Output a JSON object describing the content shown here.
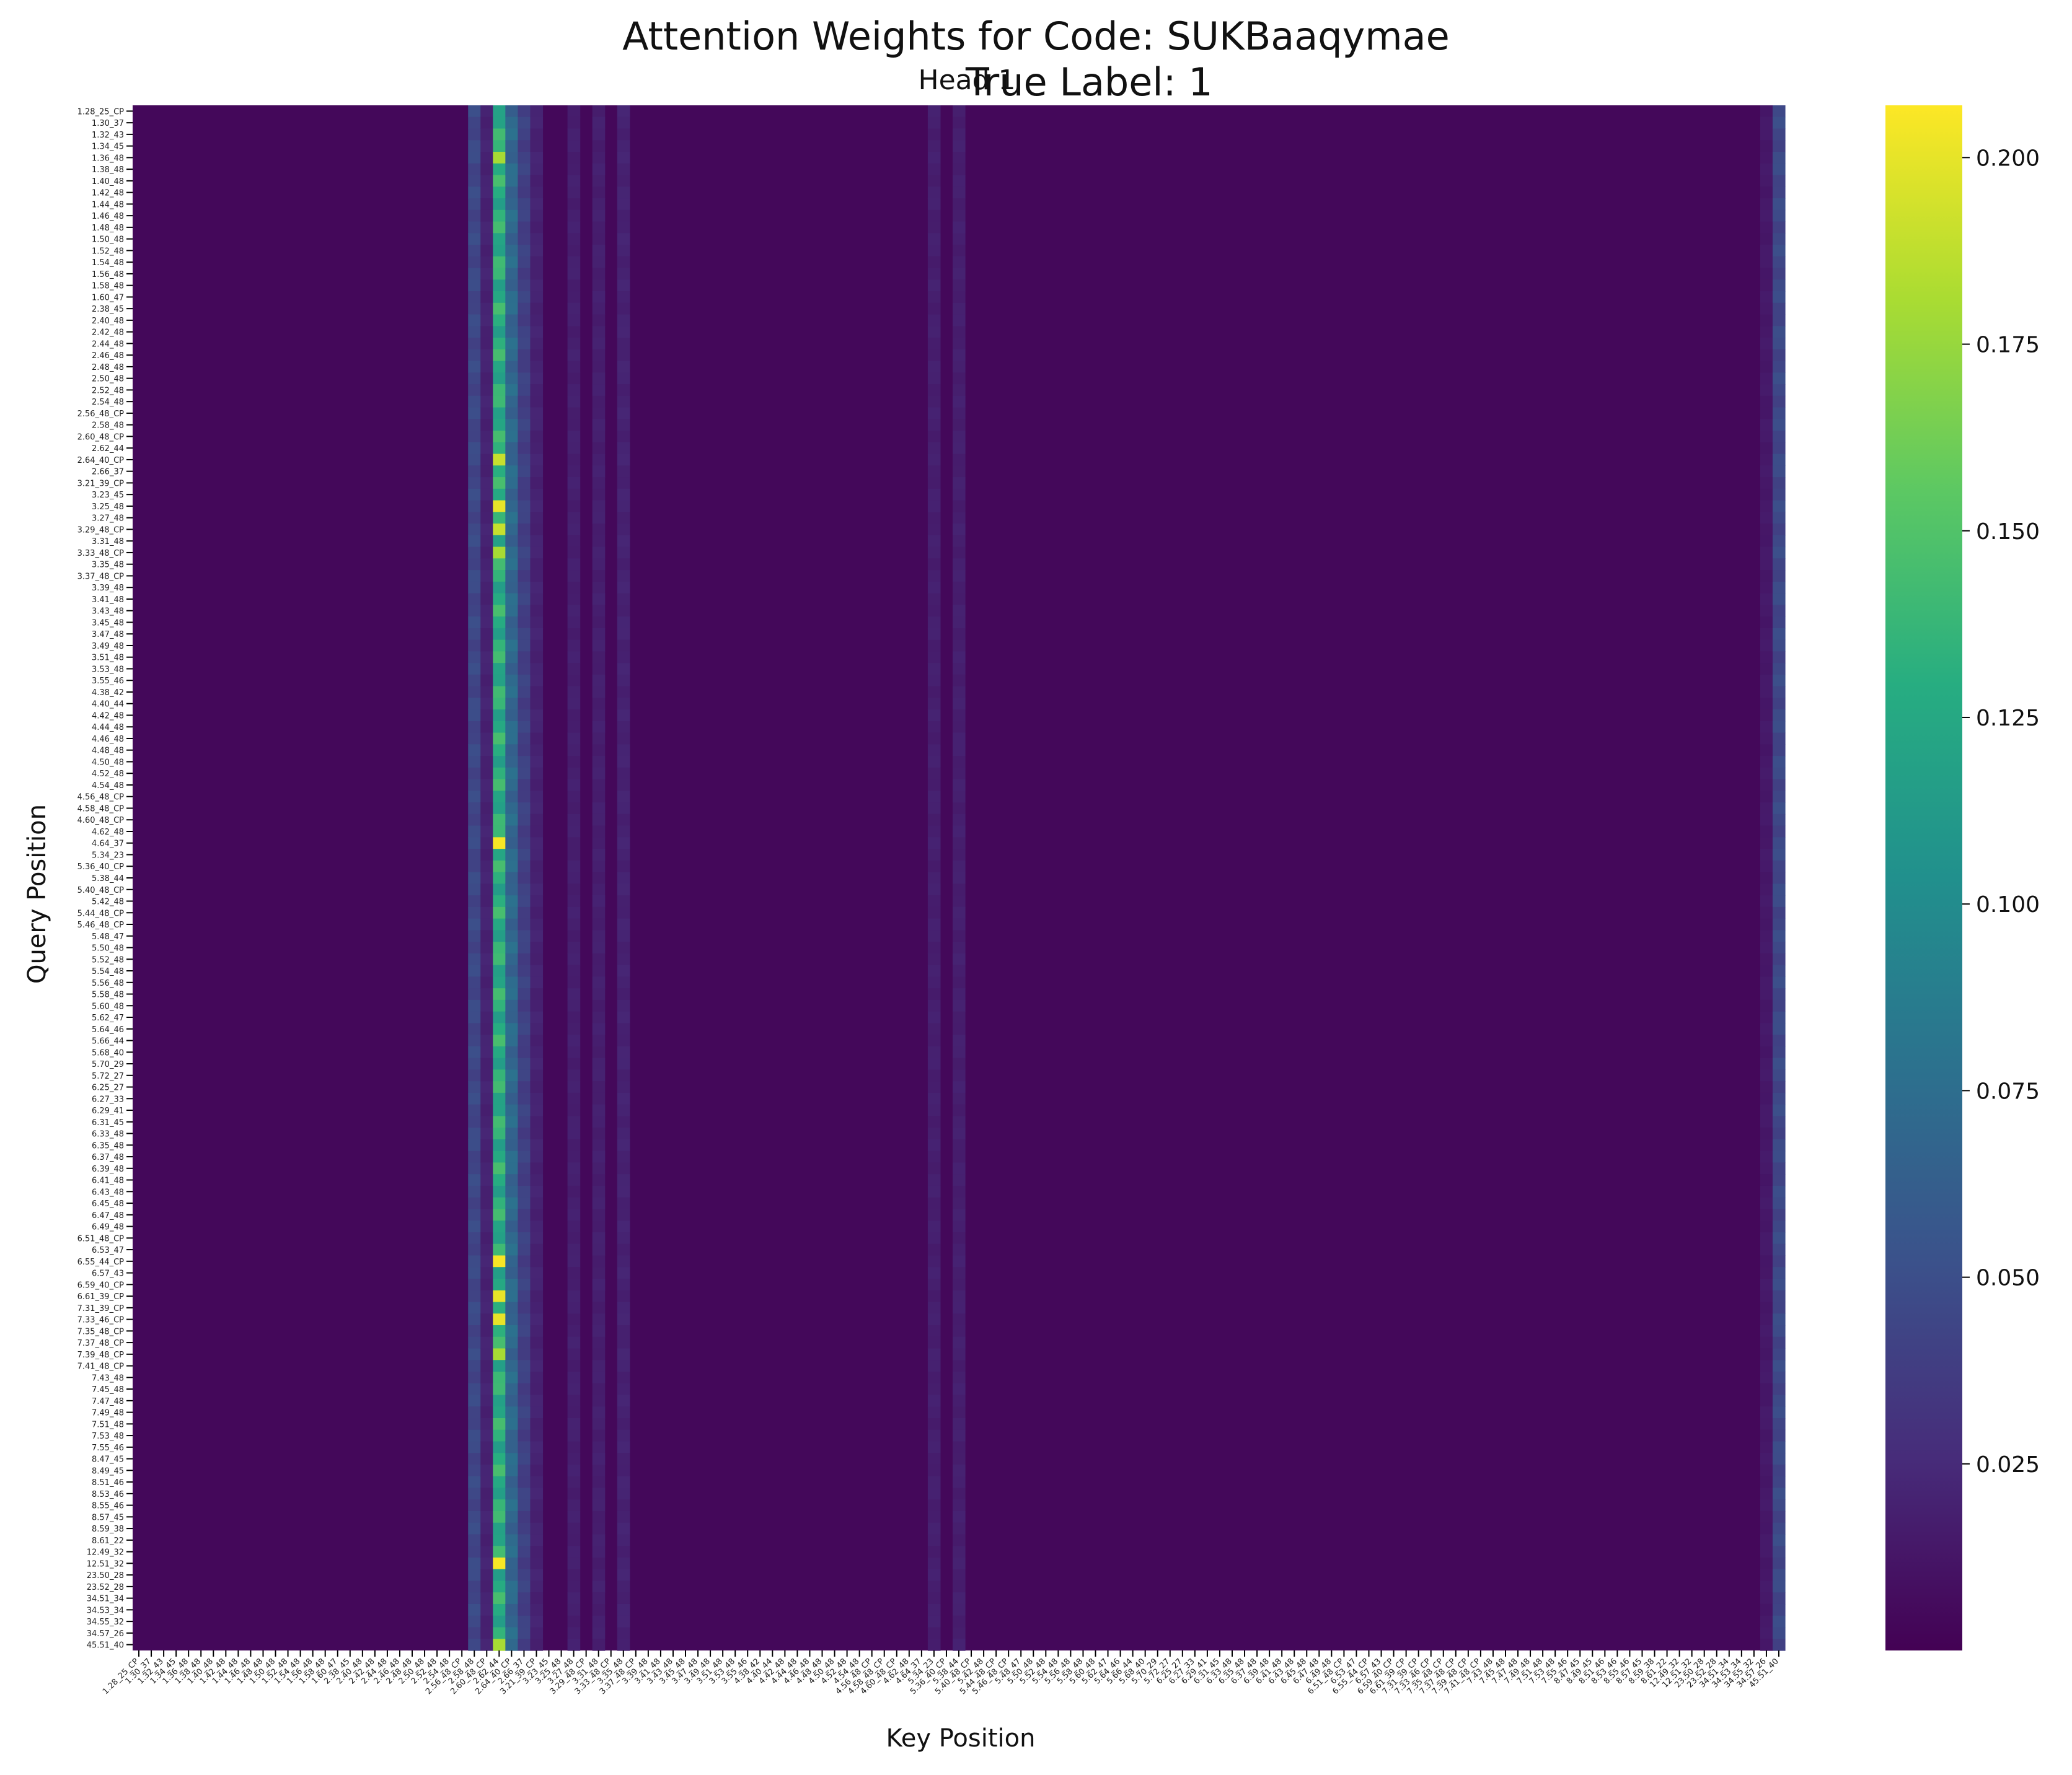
{
  "chart_data": {
    "type": "heatmap",
    "title": "Attention Weights for Code: SUKBaaqymae",
    "subtitle": "True Label: 1",
    "panel_title": "Head 1",
    "xlabel": "Key Position",
    "ylabel": "Query Position",
    "colormap": "viridis",
    "colorbar": {
      "vmin": 0.0,
      "vmax": 0.207,
      "ticks": [
        0.025,
        0.05,
        0.075,
        0.1,
        0.125,
        0.15,
        0.175,
        0.2
      ],
      "tick_labels": [
        "0.025",
        "0.050",
        "0.075",
        "0.100",
        "0.125",
        "0.150",
        "0.175",
        "0.200"
      ]
    },
    "positions": [
      "1.28_25_CP",
      "1.30_37",
      "1.32_43",
      "1.34_45",
      "1.36_48",
      "1.38_48",
      "1.40_48",
      "1.42_48",
      "1.44_48",
      "1.46_48",
      "1.48_48",
      "1.50_48",
      "1.52_48",
      "1.54_48",
      "1.56_48",
      "1.58_48",
      "1.60_47",
      "2.38_45",
      "2.40_48",
      "2.42_48",
      "2.44_48",
      "2.46_48",
      "2.48_48",
      "2.50_48",
      "2.52_48",
      "2.54_48",
      "2.56_48_CP",
      "2.58_48",
      "2.60_48_CP",
      "2.62_44",
      "2.64_40_CP",
      "2.66_37",
      "3.21_39_CP",
      "3.23_45",
      "3.25_48",
      "3.27_48",
      "3.29_48_CP",
      "3.31_48",
      "3.33_48_CP",
      "3.35_48",
      "3.37_48_CP",
      "3.39_48",
      "3.41_48",
      "3.43_48",
      "3.45_48",
      "3.47_48",
      "3.49_48",
      "3.51_48",
      "3.53_48",
      "3.55_46",
      "4.38_42",
      "4.40_44",
      "4.42_48",
      "4.44_48",
      "4.46_48",
      "4.48_48",
      "4.50_48",
      "4.52_48",
      "4.54_48",
      "4.56_48_CP",
      "4.58_48_CP",
      "4.60_48_CP",
      "4.62_48",
      "4.64_37",
      "5.34_23",
      "5.36_40_CP",
      "5.38_44",
      "5.40_48_CP",
      "5.42_48",
      "5.44_48_CP",
      "5.46_48_CP",
      "5.48_47",
      "5.50_48",
      "5.52_48",
      "5.54_48",
      "5.56_48",
      "5.58_48",
      "5.60_48",
      "5.62_47",
      "5.64_46",
      "5.66_44",
      "5.68_40",
      "5.70_29",
      "5.72_27",
      "6.25_27",
      "6.27_33",
      "6.29_41",
      "6.31_45",
      "6.33_48",
      "6.35_48",
      "6.37_48",
      "6.39_48",
      "6.41_48",
      "6.43_48",
      "6.45_48",
      "6.47_48",
      "6.49_48",
      "6.51_48_CP",
      "6.53_47",
      "6.55_44_CP",
      "6.57_43",
      "6.59_40_CP",
      "6.61_39_CP",
      "7.31_39_CP",
      "7.33_46_CP",
      "7.35_48_CP",
      "7.37_48_CP",
      "7.39_48_CP",
      "7.41_48_CP",
      "7.43_48",
      "7.45_48",
      "7.47_48",
      "7.49_48",
      "7.51_48",
      "7.53_48",
      "7.55_46",
      "8.47_45",
      "8.49_45",
      "8.51_46",
      "8.53_46",
      "8.55_46",
      "8.57_45",
      "8.59_38",
      "8.61_22",
      "12.49_32",
      "12.51_32",
      "23.50_28",
      "23.52_28",
      "34.51_34",
      "34.53_34",
      "34.55_32",
      "34.57_26",
      "45.51_40"
    ],
    "x_tick_labels_shown": [
      "1.28_25_CP",
      "1.30_37",
      "1.32_43",
      "1.34_45",
      "1.36_48",
      "1.38_48",
      "1.40_48",
      "1.42_48",
      "1.44_48",
      "1.46_48",
      "1.48_48",
      "1.50_48",
      "1.52_48",
      "1.54_48",
      "1.56_48",
      "1.58_48",
      "1.60_47",
      "2.38_45",
      "2.40_48",
      "2.42_48",
      "2.44_48",
      "2.46_48",
      "2.48_48",
      "2.50_48",
      "2.52_48",
      "2.54_48",
      "2.56_48_CP",
      "2.58_48",
      "2.60_48_CP",
      "2.62_44",
      "2.64_40_CP",
      "2.66_37",
      "3.21_39_CP",
      "3.23_45",
      "3.25_48",
      "3.27_48",
      "3.29_48_CP",
      "3.31_48",
      "3.33_48_CP",
      "3.35_48",
      "3.37_48_CP",
      "3.39_48",
      "3.41_48",
      "3.43_48",
      "3.45_48",
      "3.47_48",
      "3.49_48",
      "3.51_48",
      "3.53_48",
      "3.55_46",
      "4.38_42",
      "4.40_44",
      "4.42_48",
      "4.44_48",
      "4.46_48",
      "4.48_48",
      "4.50_48",
      "4.52_48",
      "4.54_48",
      "4.56_48_CP",
      "4.58_48_CP",
      "4.60_48_CP",
      "4.62_48",
      "4.64_37",
      "5.34_23",
      "5.36_40_CP",
      "5.38_44",
      "5.40_48_CP",
      "5.42_48",
      "5.44_48_CP",
      "5.46_48_CP",
      "5.48_47",
      "5.50_48",
      "5.52_48",
      "5.54_48",
      "5.56_48",
      "5.58_48",
      "5.60_48",
      "5.62_47",
      "5.64_46",
      "5.66_44",
      "5.68_40",
      "5.70_29",
      "5.72_27",
      "6.25_27",
      "6.27_33",
      "6.29_41",
      "6.31_45",
      "6.33_48",
      "6.35_48",
      "6.37_48",
      "6.39_48",
      "6.41_48",
      "6.43_48",
      "6.45_48",
      "6.47_48",
      "6.49_48",
      "6.51_48_CP",
      "6.53_47",
      "6.55_44_CP",
      "6.57_43",
      "6.59_40_CP",
      "6.61_39_CP",
      "7.31_39_CP",
      "7.33_46_CP",
      "7.35_48_CP",
      "7.37_48_CP",
      "7.39_48_CP",
      "7.41_48_CP",
      "7.43_48",
      "7.45_48",
      "7.47_48",
      "7.49_48",
      "7.51_48",
      "7.53_48",
      "7.55_46",
      "8.47_45",
      "8.49_45",
      "8.51_46",
      "8.53_46",
      "8.55_46",
      "8.57_45",
      "8.59_38",
      "8.61_22",
      "12.49_32",
      "12.51_32",
      "23.50_28",
      "23.52_28",
      "34.51_34",
      "34.53_34",
      "34.55_32",
      "34.57_26",
      "45.51_40"
    ],
    "y_tick_labels_shown": [
      "1.28_25_CP",
      "1.30_37",
      "1.32_43",
      "1.34_45",
      "1.36_48",
      "1.38_48",
      "1.40_48",
      "1.42_48",
      "1.44_48",
      "1.46_48",
      "1.48_48",
      "1.50_48",
      "1.52_48",
      "1.54_48",
      "1.56_48",
      "1.58_48",
      "1.60_47",
      "2.38_45",
      "2.40_48",
      "2.42_48",
      "2.44_48",
      "2.46_48",
      "2.48_48",
      "2.50_48",
      "2.52_48",
      "2.54_48",
      "2.56_48_CP",
      "2.58_48",
      "2.60_48_CP",
      "2.62_44",
      "2.64_40_CP",
      "2.66_37",
      "3.21_39_CP",
      "3.23_45",
      "3.25_48",
      "3.27_48",
      "3.29_48_CP",
      "3.31_48",
      "3.33_48_CP",
      "3.35_48",
      "3.37_48_CP",
      "3.39_48",
      "3.41_48",
      "3.43_48",
      "3.45_48",
      "3.47_48",
      "3.49_48",
      "3.51_48",
      "3.53_48",
      "3.55_46",
      "4.38_42",
      "4.40_44",
      "4.42_48",
      "4.44_48",
      "4.46_48",
      "4.48_48",
      "4.50_48",
      "4.52_48",
      "4.54_48",
      "4.56_48_CP",
      "4.58_48_CP",
      "4.60_48_CP",
      "4.62_48",
      "4.64_37",
      "5.34_23",
      "5.36_40_CP",
      "5.38_44",
      "5.40_48_CP",
      "5.42_48",
      "5.44_48_CP",
      "5.46_48_CP",
      "5.48_47",
      "5.50_48",
      "5.52_48",
      "5.54_48",
      "5.56_48",
      "5.58_48",
      "5.60_48",
      "5.62_47",
      "5.64_46",
      "5.66_44",
      "5.68_40",
      "5.70_29",
      "5.72_27",
      "6.25_27",
      "6.27_33",
      "6.29_41",
      "6.31_45",
      "6.33_48",
      "6.35_48",
      "6.37_48",
      "6.39_48",
      "6.41_48",
      "6.43_48",
      "6.45_48",
      "6.47_48",
      "6.49_48",
      "6.51_48_CP",
      "6.53_47",
      "6.55_44_CP",
      "6.57_43",
      "6.59_40_CP",
      "6.61_39_CP",
      "7.31_39_CP",
      "7.33_46_CP",
      "7.35_48_CP",
      "7.37_48_CP",
      "7.39_48_CP",
      "7.41_48_CP",
      "7.43_48",
      "7.45_48",
      "7.47_48",
      "7.49_48",
      "7.51_48",
      "7.53_48",
      "7.55_46",
      "8.47_45",
      "8.49_45",
      "8.51_46",
      "8.53_46",
      "8.55_46",
      "8.57_45",
      "8.59_38",
      "8.61_22",
      "12.49_32",
      "12.51_32",
      "23.50_28",
      "23.52_28",
      "34.51_34",
      "34.53_34",
      "34.55_32",
      "34.57_26",
      "45.51_40"
    ],
    "baseline_weight": 0.004,
    "key_columns": [
      {
        "key": "2.58_48",
        "weight": 0.045
      },
      {
        "key": "2.60_48_CP",
        "weight": 0.02
      },
      {
        "key": "2.62_44",
        "weight": 0.13
      },
      {
        "key": "2.64_40_CP",
        "weight": 0.07
      },
      {
        "key": "2.66_37",
        "weight": 0.04
      },
      {
        "key": "3.21_39_CP",
        "weight": 0.02
      },
      {
        "key": "3.27_48",
        "weight": 0.018
      },
      {
        "key": "3.31_48",
        "weight": 0.018
      },
      {
        "key": "3.35_48",
        "weight": 0.02
      },
      {
        "key": "5.34_23",
        "weight": 0.018
      },
      {
        "key": "5.38_44",
        "weight": 0.018
      },
      {
        "key": "34.57_26",
        "weight": 0.014
      },
      {
        "key": "45.51_40",
        "weight": 0.045
      }
    ],
    "hot_cells": [
      {
        "query": "1.36_48",
        "key": "2.62_44",
        "weight": 0.18
      },
      {
        "query": "2.64_40_CP",
        "key": "2.62_44",
        "weight": 0.19
      },
      {
        "query": "3.25_48",
        "key": "2.62_44",
        "weight": 0.2
      },
      {
        "query": "3.29_48_CP",
        "key": "2.62_44",
        "weight": 0.19
      },
      {
        "query": "3.33_48_CP",
        "key": "2.62_44",
        "weight": 0.18
      },
      {
        "query": "4.64_37",
        "key": "2.62_44",
        "weight": 0.205
      },
      {
        "query": "6.55_44_CP",
        "key": "2.62_44",
        "weight": 0.205
      },
      {
        "query": "6.61_39_CP",
        "key": "2.62_44",
        "weight": 0.2
      },
      {
        "query": "7.33_46_CP",
        "key": "2.62_44",
        "weight": 0.2
      },
      {
        "query": "7.39_48_CP",
        "key": "2.62_44",
        "weight": 0.18
      },
      {
        "query": "12.51_32",
        "key": "2.62_44",
        "weight": 0.205
      },
      {
        "query": "45.51_40",
        "key": "2.62_44",
        "weight": 0.18
      }
    ]
  }
}
